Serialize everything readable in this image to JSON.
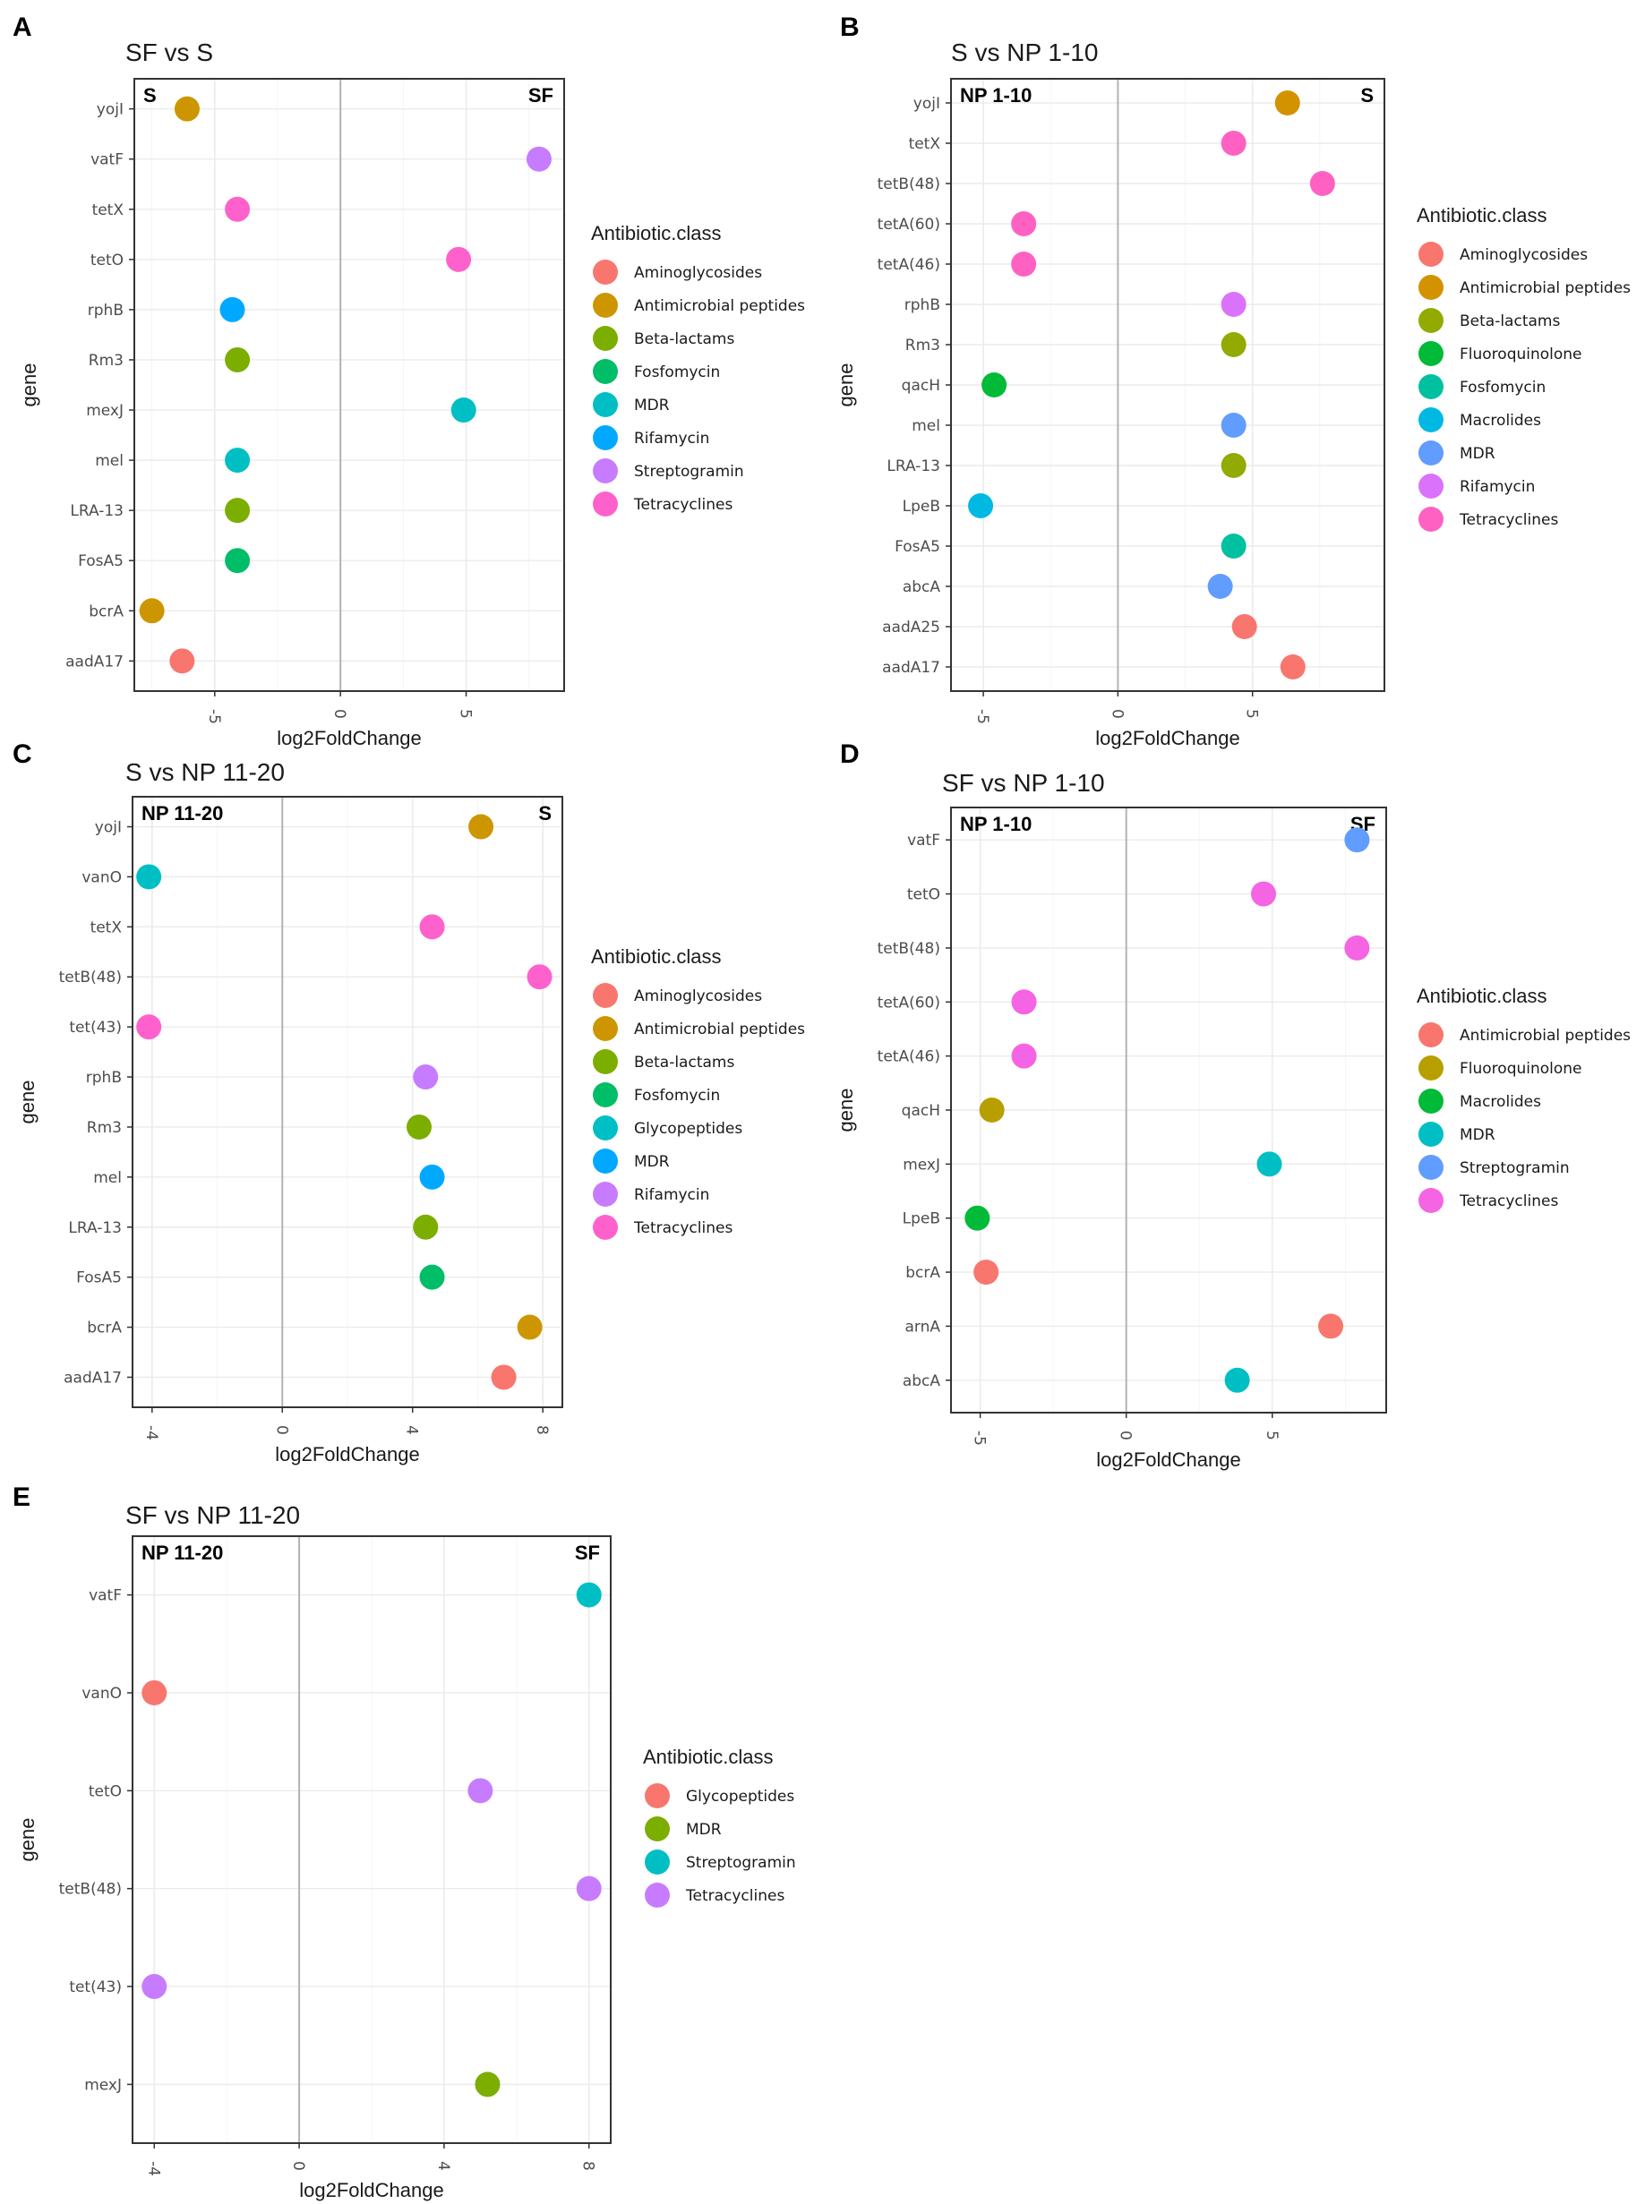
{
  "legend_title": "Antibiotic.class",
  "chart_data": [
    {
      "panel": "A",
      "type": "scatter",
      "title": "SF vs S",
      "xlabel": "log2FoldChange",
      "ylabel": "gene",
      "left_label": "S",
      "right_label": "SF",
      "xlim": [
        -8.2,
        8.9
      ],
      "xticks": [
        -5,
        0,
        5
      ],
      "genes": [
        "yojI",
        "vatF",
        "tetX",
        "tetO",
        "rphB",
        "Rm3",
        "mexJ",
        "mel",
        "LRA-13",
        "FosA5",
        "bcrA",
        "aadA17"
      ],
      "legend": [
        {
          "name": "Aminoglycosides",
          "color": "#F8766D"
        },
        {
          "name": "Antimicrobial peptides",
          "color": "#CD9600"
        },
        {
          "name": "Beta-lactams",
          "color": "#7CAE00"
        },
        {
          "name": "Fosfomycin",
          "color": "#00BE67"
        },
        {
          "name": "MDR",
          "color": "#00BFC4"
        },
        {
          "name": "Rifamycin",
          "color": "#00A9FF"
        },
        {
          "name": "Streptogramin",
          "color": "#C77CFF"
        },
        {
          "name": "Tetracyclines",
          "color": "#FF61CC"
        }
      ],
      "points": [
        {
          "gene": "yojI",
          "x": -6.1,
          "cls": "Antimicrobial peptides"
        },
        {
          "gene": "vatF",
          "x": 7.9,
          "cls": "Streptogramin"
        },
        {
          "gene": "tetX",
          "x": -4.1,
          "cls": "Tetracyclines"
        },
        {
          "gene": "tetO",
          "x": 4.7,
          "cls": "Tetracyclines"
        },
        {
          "gene": "rphB",
          "x": -4.3,
          "cls": "Rifamycin"
        },
        {
          "gene": "Rm3",
          "x": -4.1,
          "cls": "Beta-lactams"
        },
        {
          "gene": "mexJ",
          "x": 4.9,
          "cls": "MDR"
        },
        {
          "gene": "mel",
          "x": -4.1,
          "cls": "MDR"
        },
        {
          "gene": "LRA-13",
          "x": -4.1,
          "cls": "Beta-lactams"
        },
        {
          "gene": "FosA5",
          "x": -4.1,
          "cls": "Fosfomycin"
        },
        {
          "gene": "bcrA",
          "x": -7.5,
          "cls": "Antimicrobial peptides"
        },
        {
          "gene": "aadA17",
          "x": -6.3,
          "cls": "Aminoglycosides"
        }
      ]
    },
    {
      "panel": "B",
      "type": "scatter",
      "title": "S vs NP 1-10",
      "xlabel": "log2FoldChange",
      "ylabel": "gene",
      "left_label": "NP 1-10",
      "right_label": "S",
      "xlim": [
        -6.2,
        9.9
      ],
      "xticks": [
        -5,
        0,
        5
      ],
      "genes": [
        "yojI",
        "tetX",
        "tetB(48)",
        "tetA(60)",
        "tetA(46)",
        "rphB",
        "Rm3",
        "qacH",
        "mel",
        "LRA-13",
        "LpeB",
        "FosA5",
        "abcA",
        "aadA25",
        "aadA17"
      ],
      "legend": [
        {
          "name": "Aminoglycosides",
          "color": "#F8766D"
        },
        {
          "name": "Antimicrobial peptides",
          "color": "#D39200"
        },
        {
          "name": "Beta-lactams",
          "color": "#93AA00"
        },
        {
          "name": "Fluoroquinolone",
          "color": "#00BA38"
        },
        {
          "name": "Fosfomycin",
          "color": "#00C19F"
        },
        {
          "name": "Macrolides",
          "color": "#00B9E3"
        },
        {
          "name": "MDR",
          "color": "#619CFF"
        },
        {
          "name": "Rifamycin",
          "color": "#DB72FB"
        },
        {
          "name": "Tetracyclines",
          "color": "#FF61C3"
        }
      ],
      "points": [
        {
          "gene": "yojI",
          "x": 6.3,
          "cls": "Antimicrobial peptides"
        },
        {
          "gene": "tetX",
          "x": 4.3,
          "cls": "Tetracyclines"
        },
        {
          "gene": "tetB(48)",
          "x": 7.6,
          "cls": "Tetracyclines"
        },
        {
          "gene": "tetA(60)",
          "x": -3.5,
          "cls": "Tetracyclines"
        },
        {
          "gene": "tetA(46)",
          "x": -3.5,
          "cls": "Tetracyclines"
        },
        {
          "gene": "rphB",
          "x": 4.3,
          "cls": "Rifamycin"
        },
        {
          "gene": "Rm3",
          "x": 4.3,
          "cls": "Beta-lactams"
        },
        {
          "gene": "qacH",
          "x": -4.6,
          "cls": "Fluoroquinolone"
        },
        {
          "gene": "mel",
          "x": 4.3,
          "cls": "MDR"
        },
        {
          "gene": "LRA-13",
          "x": 4.3,
          "cls": "Beta-lactams"
        },
        {
          "gene": "LpeB",
          "x": -5.1,
          "cls": "Macrolides"
        },
        {
          "gene": "FosA5",
          "x": 4.3,
          "cls": "Fosfomycin"
        },
        {
          "gene": "abcA",
          "x": 3.8,
          "cls": "MDR"
        },
        {
          "gene": "aadA25",
          "x": 4.7,
          "cls": "Aminoglycosides"
        },
        {
          "gene": "aadA17",
          "x": 6.5,
          "cls": "Aminoglycosides"
        }
      ]
    },
    {
      "panel": "C",
      "type": "scatter",
      "title": "S vs NP 11-20",
      "xlabel": "log2FoldChange",
      "ylabel": "gene",
      "left_label": "NP 11-20",
      "right_label": "S",
      "xlim": [
        -4.6,
        8.6
      ],
      "xticks": [
        -4,
        0,
        4,
        8
      ],
      "genes": [
        "yojI",
        "vanO",
        "tetX",
        "tetB(48)",
        "tet(43)",
        "rphB",
        "Rm3",
        "mel",
        "LRA-13",
        "FosA5",
        "bcrA",
        "aadA17"
      ],
      "legend": [
        {
          "name": "Aminoglycosides",
          "color": "#F8766D"
        },
        {
          "name": "Antimicrobial peptides",
          "color": "#CD9600"
        },
        {
          "name": "Beta-lactams",
          "color": "#7CAE00"
        },
        {
          "name": "Fosfomycin",
          "color": "#00BE67"
        },
        {
          "name": "Glycopeptides",
          "color": "#00BFC4"
        },
        {
          "name": "MDR",
          "color": "#00A9FF"
        },
        {
          "name": "Rifamycin",
          "color": "#C77CFF"
        },
        {
          "name": "Tetracyclines",
          "color": "#FF61CC"
        }
      ],
      "points": [
        {
          "gene": "yojI",
          "x": 6.1,
          "cls": "Antimicrobial peptides"
        },
        {
          "gene": "vanO",
          "x": -4.1,
          "cls": "Glycopeptides"
        },
        {
          "gene": "tetX",
          "x": 4.6,
          "cls": "Tetracyclines"
        },
        {
          "gene": "tetB(48)",
          "x": 7.9,
          "cls": "Tetracyclines"
        },
        {
          "gene": "tet(43)",
          "x": -4.1,
          "cls": "Tetracyclines"
        },
        {
          "gene": "rphB",
          "x": 4.4,
          "cls": "Rifamycin"
        },
        {
          "gene": "Rm3",
          "x": 4.2,
          "cls": "Beta-lactams"
        },
        {
          "gene": "mel",
          "x": 4.6,
          "cls": "MDR"
        },
        {
          "gene": "LRA-13",
          "x": 4.4,
          "cls": "Beta-lactams"
        },
        {
          "gene": "FosA5",
          "x": 4.6,
          "cls": "Fosfomycin"
        },
        {
          "gene": "bcrA",
          "x": 7.6,
          "cls": "Antimicrobial peptides"
        },
        {
          "gene": "aadA17",
          "x": 6.8,
          "cls": "Aminoglycosides"
        }
      ]
    },
    {
      "panel": "D",
      "type": "scatter",
      "title": "SF vs NP 1-10",
      "xlabel": "log2FoldChange",
      "ylabel": "gene",
      "left_label": "NP 1-10",
      "right_label": "SF",
      "xlim": [
        -6.0,
        8.9
      ],
      "xticks": [
        -5,
        0,
        5
      ],
      "genes": [
        "vatF",
        "tetO",
        "tetB(48)",
        "tetA(60)",
        "tetA(46)",
        "qacH",
        "mexJ",
        "LpeB",
        "bcrA",
        "arnA",
        "abcA"
      ],
      "legend": [
        {
          "name": "Antimicrobial peptides",
          "color": "#F8766D"
        },
        {
          "name": "Fluoroquinolone",
          "color": "#B79F00"
        },
        {
          "name": "Macrolides",
          "color": "#00BA38"
        },
        {
          "name": "MDR",
          "color": "#00BFC4"
        },
        {
          "name": "Streptogramin",
          "color": "#619CFF"
        },
        {
          "name": "Tetracyclines",
          "color": "#F564E3"
        }
      ],
      "points": [
        {
          "gene": "vatF",
          "x": 7.9,
          "cls": "Streptogramin"
        },
        {
          "gene": "tetO",
          "x": 4.7,
          "cls": "Tetracyclines"
        },
        {
          "gene": "tetB(48)",
          "x": 7.9,
          "cls": "Tetracyclines"
        },
        {
          "gene": "tetA(60)",
          "x": -3.5,
          "cls": "Tetracyclines"
        },
        {
          "gene": "tetA(46)",
          "x": -3.5,
          "cls": "Tetracyclines"
        },
        {
          "gene": "qacH",
          "x": -4.6,
          "cls": "Fluoroquinolone"
        },
        {
          "gene": "mexJ",
          "x": 4.9,
          "cls": "MDR"
        },
        {
          "gene": "LpeB",
          "x": -5.1,
          "cls": "Macrolides"
        },
        {
          "gene": "bcrA",
          "x": -4.8,
          "cls": "Antimicrobial peptides"
        },
        {
          "gene": "arnA",
          "x": 7.0,
          "cls": "Antimicrobial peptides"
        },
        {
          "gene": "abcA",
          "x": 3.8,
          "cls": "MDR"
        }
      ]
    },
    {
      "panel": "E",
      "type": "scatter",
      "title": "SF vs NP 11-20",
      "xlabel": "log2FoldChange",
      "ylabel": "gene",
      "left_label": "NP 11-20",
      "right_label": "SF",
      "xlim": [
        -4.6,
        8.6
      ],
      "xticks": [
        -4,
        0,
        4,
        8
      ],
      "genes": [
        "vatF",
        "vanO",
        "tetO",
        "tetB(48)",
        "tet(43)",
        "mexJ"
      ],
      "legend": [
        {
          "name": "Glycopeptides",
          "color": "#F8766D"
        },
        {
          "name": "MDR",
          "color": "#7CAE00"
        },
        {
          "name": "Streptogramin",
          "color": "#00BFC4"
        },
        {
          "name": "Tetracyclines",
          "color": "#C77CFF"
        }
      ],
      "points": [
        {
          "gene": "vatF",
          "x": 8.0,
          "cls": "Streptogramin"
        },
        {
          "gene": "vanO",
          "x": -4.0,
          "cls": "Glycopeptides"
        },
        {
          "gene": "tetO",
          "x": 5.0,
          "cls": "Tetracyclines"
        },
        {
          "gene": "tetB(48)",
          "x": 8.0,
          "cls": "Tetracyclines"
        },
        {
          "gene": "tet(43)",
          "x": -4.0,
          "cls": "Tetracyclines"
        },
        {
          "gene": "mexJ",
          "x": 5.2,
          "cls": "MDR"
        }
      ]
    }
  ]
}
